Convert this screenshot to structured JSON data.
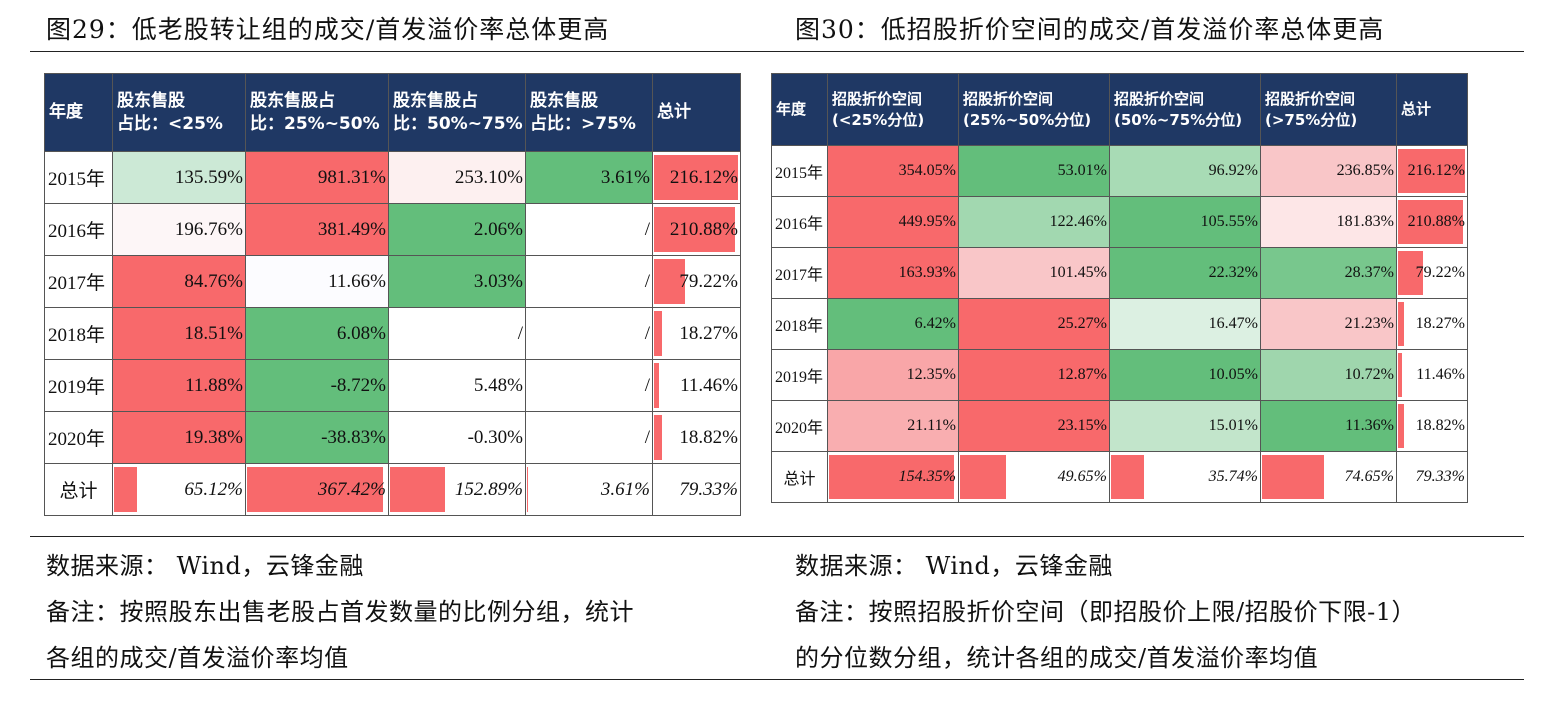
{
  "left": {
    "title": "图29：低老股转让组的成交/首发溢价率总体更高",
    "headers": [
      "年度",
      "股东售股\n占比：<25%",
      "股东售股占\n比：25%~50%",
      "股东售股占\n比：50%~75%",
      "股东售股\n占比：>75%",
      "总计"
    ],
    "rows": [
      {
        "year": "2015年",
        "cells": [
          "135.59%",
          "981.31%",
          "253.10%",
          "3.61%",
          "216.12%"
        ],
        "colors": [
          "#cce9d6",
          "#f8696b",
          "#fdf0f0",
          "#63be7b",
          null
        ],
        "bar": 1.0
      },
      {
        "year": "2016年",
        "cells": [
          "196.76%",
          "381.49%",
          "2.06%",
          "/",
          "210.88%"
        ],
        "colors": [
          "#fdf6f7",
          "#f8696b",
          "#63be7b",
          null,
          null
        ],
        "bar": 0.97
      },
      {
        "year": "2017年",
        "cells": [
          "84.76%",
          "11.66%",
          "3.03%",
          "/",
          "79.22%"
        ],
        "colors": [
          "#f8696b",
          "#fcfcff",
          "#63be7b",
          null,
          null
        ],
        "bar": 0.37
      },
      {
        "year": "2018年",
        "cells": [
          "18.51%",
          "6.08%",
          "/",
          "/",
          "18.27%"
        ],
        "colors": [
          "#f8696b",
          "#63be7b",
          null,
          null,
          null
        ],
        "bar": 0.09
      },
      {
        "year": "2019年",
        "cells": [
          "11.88%",
          "-8.72%",
          "5.48%",
          "/",
          "11.46%"
        ],
        "colors": [
          "#f8696b",
          "#63be7b",
          null,
          null,
          null
        ],
        "bar": 0.06
      },
      {
        "year": "2020年",
        "cells": [
          "19.38%",
          "-38.83%",
          "-0.30%",
          "/",
          "18.82%"
        ],
        "colors": [
          "#f8696b",
          "#63be7b",
          null,
          null,
          null
        ],
        "bar": 0.09
      }
    ],
    "total": {
      "label": "总计",
      "cells": [
        "65.12%",
        "367.42%",
        "152.89%",
        "3.61%",
        "79.33%"
      ],
      "bars": [
        0.18,
        1.0,
        0.42,
        0.01,
        0
      ]
    },
    "source": "数据来源： Wind，云锋金融",
    "note_line1": "备注：按照股东出售老股占首发数量的比例分组，统计",
    "note_line2": "各组的成交/首发溢价率均值"
  },
  "right": {
    "title": "图30：低招股折价空间的成交/首发溢价率总体更高",
    "headers": [
      "年度",
      "招股折价空间\n(<25%分位)",
      "招股折价空间\n(25%~50%分位)",
      "招股折价空间\n(50%~75%分位)",
      "招股折价空间\n(>75%分位)",
      "总计"
    ],
    "rows": [
      {
        "year": "2015年",
        "cells": [
          "354.05%",
          "53.01%",
          "96.92%",
          "236.85%",
          "216.12%"
        ],
        "colors": [
          "#f8696b",
          "#63be7b",
          "#a8dbb5",
          "#f9c6c8",
          null
        ],
        "bar": 1.0
      },
      {
        "year": "2016年",
        "cells": [
          "449.95%",
          "122.46%",
          "105.55%",
          "181.83%",
          "210.88%"
        ],
        "colors": [
          "#f8696b",
          "#a2d8b0",
          "#63be7b",
          "#fde6e7",
          null
        ],
        "bar": 0.97
      },
      {
        "year": "2017年",
        "cells": [
          "163.93%",
          "101.45%",
          "22.32%",
          "28.37%",
          "79.22%"
        ],
        "colors": [
          "#f8696b",
          "#f9c6c8",
          "#63be7b",
          "#78c78d",
          null
        ],
        "bar": 0.37
      },
      {
        "year": "2018年",
        "cells": [
          "6.42%",
          "25.27%",
          "16.47%",
          "21.23%",
          "18.27%"
        ],
        "colors": [
          "#63be7b",
          "#f8696b",
          "#dcf0e2",
          "#f9c6c8",
          null
        ],
        "bar": 0.09
      },
      {
        "year": "2019年",
        "cells": [
          "12.35%",
          "12.87%",
          "10.05%",
          "10.72%",
          "11.46%"
        ],
        "colors": [
          "#f9a6a8",
          "#f8696b",
          "#63be7b",
          "#9fd6ad",
          null
        ],
        "bar": 0.06
      },
      {
        "year": "2020年",
        "cells": [
          "21.11%",
          "23.15%",
          "15.01%",
          "11.36%",
          "18.82%"
        ],
        "colors": [
          "#f9aeb0",
          "#f8696b",
          "#c2e5cb",
          "#63be7b",
          null
        ],
        "bar": 0.09
      }
    ],
    "total": {
      "label": "总计",
      "cells": [
        "154.35%",
        "49.65%",
        "35.74%",
        "74.65%",
        "79.33%"
      ],
      "bars": [
        1.0,
        0.32,
        0.23,
        0.48,
        0
      ]
    },
    "source": "数据来源： Wind，云锋金融",
    "note_line1": "备注：按照招股折价空间（即招股价上限/招股价下限-1）",
    "note_line2": "的分位数分组，统计各组的成交/首发溢价率均值"
  }
}
